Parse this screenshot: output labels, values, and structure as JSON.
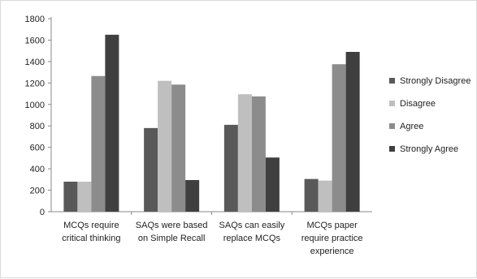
{
  "chart_data": {
    "type": "bar",
    "categories": [
      [
        "MCQs require",
        "critical thinking"
      ],
      [
        "SAQs were based",
        "on Simple Recall"
      ],
      [
        "SAQs can easily",
        "replace MCQs"
      ],
      [
        "MCQs paper",
        "require practice",
        "experience"
      ]
    ],
    "series": [
      {
        "name": "Strongly Disagree",
        "color": "#595959",
        "values": [
          280,
          780,
          810,
          305
        ]
      },
      {
        "name": "Disagree",
        "color": "#bfbfbf",
        "values": [
          280,
          1220,
          1095,
          290
        ]
      },
      {
        "name": "Agree",
        "color": "#8c8c8c",
        "values": [
          1265,
          1185,
          1075,
          1375
        ]
      },
      {
        "name": "Strongly Agree",
        "color": "#3f3f3f",
        "values": [
          1650,
          295,
          505,
          1490
        ]
      }
    ],
    "ylim": [
      0,
      1800
    ],
    "yticks": [
      "0",
      "200",
      "400",
      "600",
      "800",
      "1000",
      "1200",
      "1400",
      "1600",
      "1800"
    ],
    "legend_position": "right",
    "grid": false
  }
}
